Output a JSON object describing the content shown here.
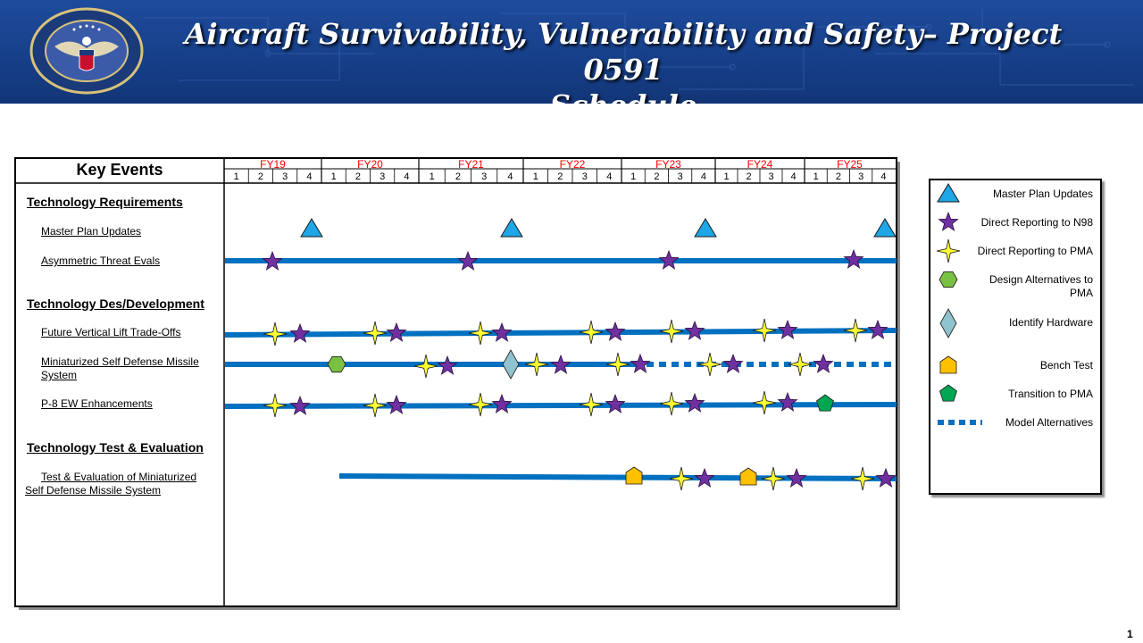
{
  "header": {
    "title_line1": "Aircraft Survivability, Vulnerability and Safety– Project 0591",
    "title_line2": "Schedule",
    "seal_ring_text": "DEPARTMENT OF DEFENSE",
    "seal_bottom_text": "UNITED STATES OF AMERICA"
  },
  "table": {
    "key_events_title": "Key Events",
    "fiscal_years": [
      "FY19",
      "FY20",
      "FY21",
      "FY22",
      "FY23",
      "FY24",
      "FY25"
    ],
    "quarters": [
      "1",
      "2",
      "3",
      "4"
    ]
  },
  "sections": [
    {
      "label": "Technology Requirements",
      "events": [
        {
          "label": "Master Plan Updates"
        },
        {
          "label": "Asymmetric Threat Evals"
        }
      ]
    },
    {
      "label": "Technology Des/Development",
      "events": [
        {
          "label": "Future Vertical Lift Trade-Offs"
        },
        {
          "label": "Miniaturized  Self Defense  Missile",
          "label2": "System"
        },
        {
          "label": "P-8  EW Enhancements"
        }
      ]
    },
    {
      "label": "Technology Test & Evaluation",
      "events": [
        {
          "label": "Test  &  Evaluation  of Miniaturized",
          "label2": "Self Defense  Missile System"
        }
      ]
    }
  ],
  "legend": {
    "items": [
      {
        "label": "Master Plan Updates",
        "icon": "triangle-icon",
        "color": "#1ea6e6"
      },
      {
        "label": "Direct Reporting  to N98",
        "icon": "purple-star-icon",
        "color": "#7030a0"
      },
      {
        "label": "Direct Reporting  to PMA",
        "icon": "yellow-star-icon",
        "color": "#ffff33"
      },
      {
        "label": "Design  Alternatives  to",
        "label2": "PMA",
        "icon": "hexagon-icon",
        "color": "#7ac143"
      },
      {
        "label": "Identify Hardware",
        "icon": "diamond-icon",
        "color": "#8fc3cf"
      },
      {
        "label": "Bench Test",
        "icon": "pentagon-icon",
        "color": "#ffc000"
      },
      {
        "label": "Transition  to PMA",
        "icon": "green-pentagon-icon",
        "color": "#00a651"
      },
      {
        "label": "Model  Alternatives",
        "icon": "dotted-line-icon",
        "color": "#0070c0"
      }
    ]
  },
  "page": {
    "number": "1"
  },
  "colors": {
    "banner": "#1a4590",
    "fy_label": "#ff0000",
    "bar": "#0070c0"
  }
}
